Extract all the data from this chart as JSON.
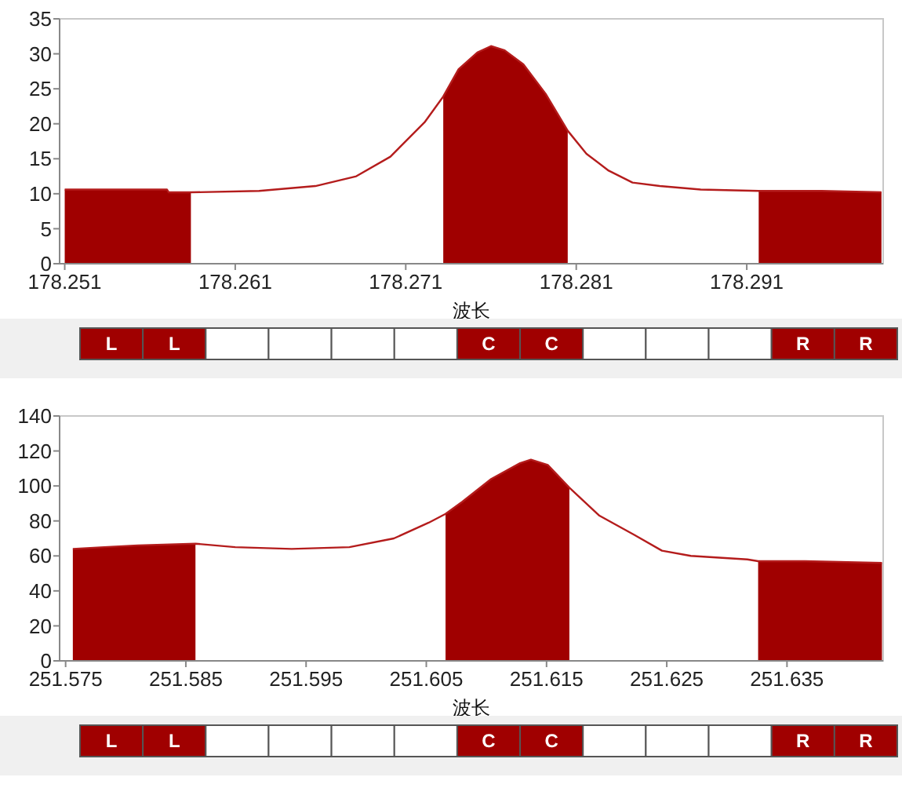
{
  "chart_data": [
    {
      "type": "line",
      "xlabel": "波长",
      "xlim": [
        178.2507,
        178.299
      ],
      "ylim": [
        0,
        35
      ],
      "xticks": [
        178.251,
        178.261,
        178.271,
        178.281,
        178.291
      ],
      "yticks": [
        0,
        5,
        10,
        15,
        20,
        25,
        30,
        35
      ],
      "grid": false,
      "marker": "none",
      "line_style": "solid",
      "series": [
        {
          "type": "area",
          "color": "#a00000",
          "x": [
            178.251,
            178.257,
            178.2571,
            178.2584
          ],
          "values": [
            10.6,
            10.6,
            10.2,
            10.2
          ]
        },
        {
          "type": "area",
          "color": "#a00000",
          "x": [
            178.2732,
            178.2741,
            178.2752,
            178.276,
            178.2768,
            178.2779,
            178.2792,
            178.2805
          ],
          "values": [
            23.9,
            27.8,
            30.2,
            31.1,
            30.5,
            28.5,
            24.3,
            19.0
          ]
        },
        {
          "type": "area",
          "color": "#a00000",
          "x": [
            178.2917,
            178.2954,
            178.2989
          ],
          "values": [
            10.4,
            10.4,
            10.2
          ]
        },
        {
          "type": "line",
          "color": "#b41c1c",
          "x": [
            178.251,
            178.257,
            178.2571,
            178.2584,
            178.2624,
            178.2657,
            178.2681,
            178.2701,
            178.2721,
            178.2732,
            178.2741,
            178.2752,
            178.276,
            178.2768,
            178.2779,
            178.2792,
            178.2805,
            178.2816,
            178.2829,
            178.2843,
            178.2859,
            178.2883,
            178.2917,
            178.2954,
            178.2989
          ],
          "values": [
            10.6,
            10.6,
            10.2,
            10.2,
            10.4,
            11.1,
            12.5,
            15.3,
            20.2,
            23.9,
            27.8,
            30.2,
            31.1,
            30.5,
            28.5,
            24.3,
            19.0,
            15.7,
            13.3,
            11.6,
            11.1,
            10.6,
            10.4,
            10.4,
            10.2
          ]
        }
      ]
    },
    {
      "type": "other",
      "categories": [
        "L",
        "L",
        null,
        null,
        null,
        null,
        "C",
        "C",
        null,
        null,
        null,
        "R",
        "R"
      ],
      "colors": [
        "#a00000",
        "#a00000",
        "#ffffff",
        "#ffffff",
        "#ffffff",
        "#ffffff",
        "#a00000",
        "#a00000",
        "#ffffff",
        "#ffffff",
        "#ffffff",
        "#a00000",
        "#a00000"
      ]
    },
    {
      "type": "line",
      "xlabel": "波长",
      "xlim": [
        251.5745,
        251.643
      ],
      "ylim": [
        0,
        140
      ],
      "xticks": [
        251.575,
        251.585,
        251.595,
        251.605,
        251.615,
        251.625,
        251.635
      ],
      "yticks": [
        0,
        20,
        40,
        60,
        80,
        100,
        120,
        140
      ],
      "grid": false,
      "marker": "none",
      "line_style": "solid",
      "series": [
        {
          "type": "area",
          "color": "#a00000",
          "x": [
            251.5756,
            251.5782,
            251.581,
            251.5858
          ],
          "values": [
            64,
            65,
            66,
            67
          ]
        },
        {
          "type": "area",
          "color": "#a00000",
          "x": [
            251.6066,
            251.608,
            251.6104,
            251.6128,
            251.6137,
            251.6151,
            251.6169
          ],
          "values": [
            84,
            91,
            104,
            113,
            115,
            112,
            99
          ]
        },
        {
          "type": "area",
          "color": "#a00000",
          "x": [
            251.6326,
            251.6365,
            251.6429
          ],
          "values": [
            57,
            57,
            56
          ]
        },
        {
          "type": "line",
          "color": "#b41c1c",
          "x": [
            251.5756,
            251.5782,
            251.581,
            251.5858,
            251.5891,
            251.5938,
            251.5986,
            251.6023,
            251.6052,
            251.6066,
            251.608,
            251.6104,
            251.6128,
            251.6137,
            251.6151,
            251.6169,
            251.6194,
            251.6223,
            251.6246,
            251.627,
            251.6317,
            251.6326,
            251.6365,
            251.6429
          ],
          "values": [
            64,
            65,
            66,
            67,
            65,
            64,
            65,
            70,
            79,
            84,
            91,
            104,
            113,
            115,
            112,
            99,
            83,
            72,
            63,
            60,
            58,
            57,
            57,
            56
          ]
        }
      ]
    },
    {
      "type": "other",
      "categories": [
        "L",
        "L",
        null,
        null,
        null,
        null,
        "C",
        "C",
        null,
        null,
        null,
        "R",
        "R"
      ],
      "colors": [
        "#a00000",
        "#a00000",
        "#ffffff",
        "#ffffff",
        "#ffffff",
        "#ffffff",
        "#a00000",
        "#a00000",
        "#ffffff",
        "#ffffff",
        "#ffffff",
        "#a00000",
        "#a00000"
      ]
    }
  ]
}
